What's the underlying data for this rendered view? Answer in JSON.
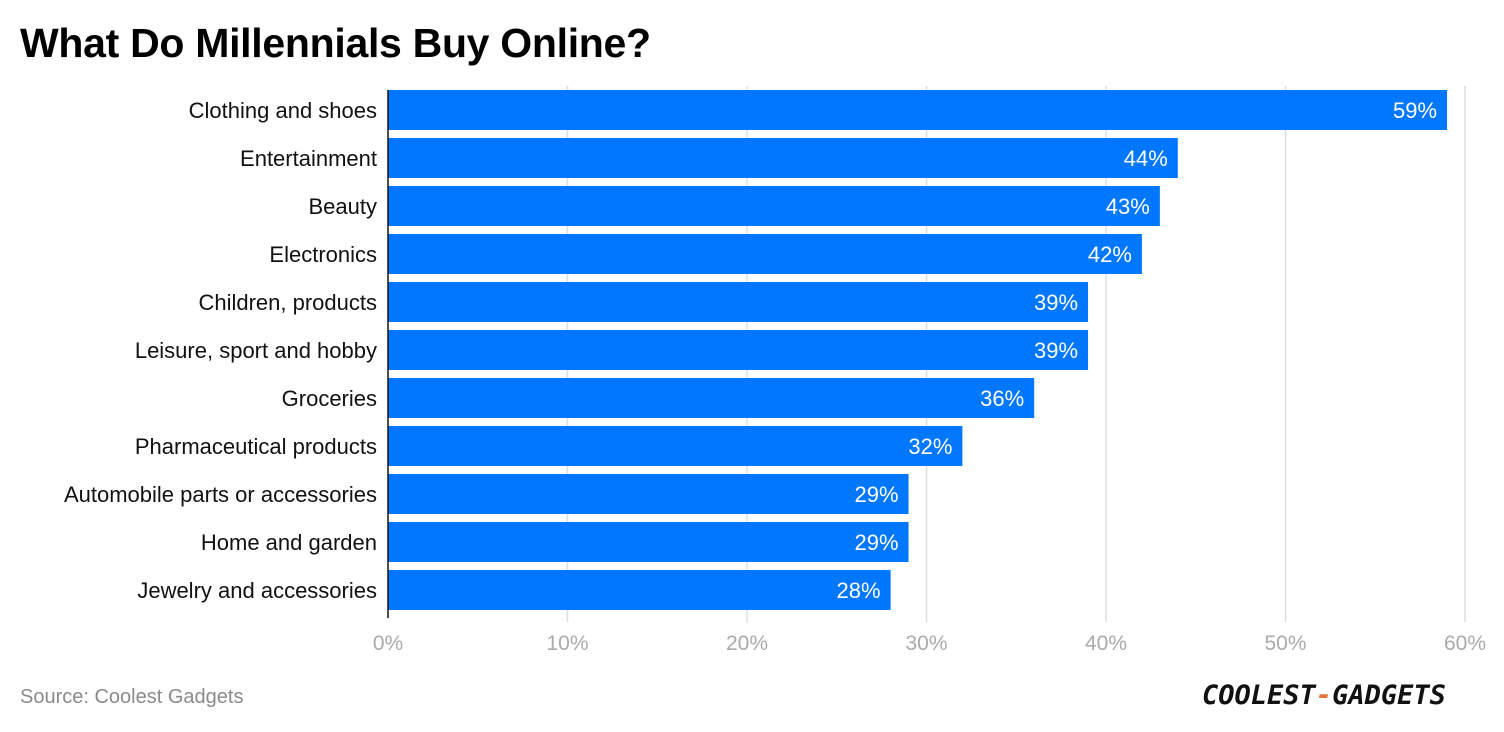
{
  "chart_data": {
    "type": "bar",
    "orientation": "horizontal",
    "title": "What Do Millennials Buy Online?",
    "categories": [
      "Clothing and shoes",
      "Entertainment",
      "Beauty",
      "Electronics",
      "Children, products",
      "Leisure, sport and hobby",
      "Groceries",
      "Pharmaceutical products",
      "Automobile parts or accessories",
      "Home and garden",
      "Jewelry and accessories"
    ],
    "values": [
      59,
      44,
      43,
      42,
      39,
      39,
      36,
      32,
      29,
      29,
      28
    ],
    "value_labels": [
      "59%",
      "44%",
      "43%",
      "42%",
      "39%",
      "39%",
      "36%",
      "32%",
      "29%",
      "29%",
      "28%"
    ],
    "x_ticks": [
      0,
      10,
      20,
      30,
      40,
      50,
      60
    ],
    "x_tick_labels": [
      "0%",
      "10%",
      "20%",
      "30%",
      "40%",
      "50%",
      "60%"
    ],
    "xlim": [
      0,
      60
    ],
    "xlabel": "",
    "ylabel": "",
    "grid": true,
    "legend": "none",
    "colors": {
      "bar": "#0077ff",
      "grid": "#dddddd",
      "axis": "#111111",
      "tick_label": "#aaaaaa",
      "category_label": "#111111",
      "value_label": "#ffffff"
    }
  },
  "footer": {
    "source": "Source: Coolest Gadgets",
    "logo_part1": "COOLEST",
    "logo_dash": "-",
    "logo_part2": "GADGETS"
  }
}
